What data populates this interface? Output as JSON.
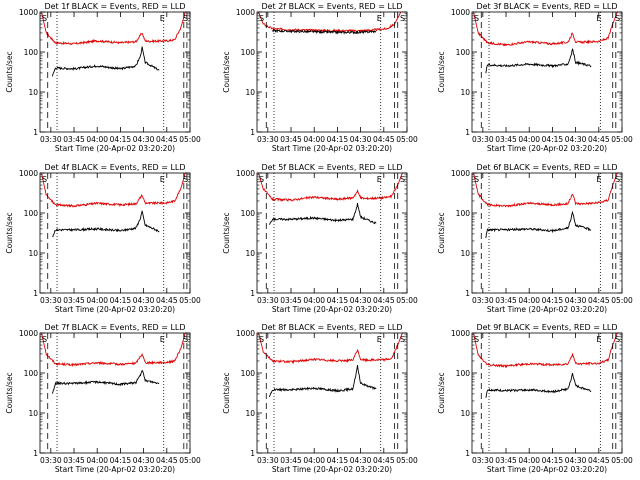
{
  "figure": {
    "xlabel": "Start Time (20-Apr-02 03:20:20)",
    "ylabel": "Counts/sec",
    "colors": {
      "events": "#000000",
      "lld": "#e00000",
      "axes": "#000000"
    }
  },
  "chart_data": [
    {
      "type": "line",
      "title": "Det 1f  BLACK = Events, RED = LLD",
      "xlabel": "Start Time (20-Apr-02 03:20:20)",
      "ylabel": "Counts/sec",
      "y_scale": "log",
      "ylim": [
        1,
        1000
      ],
      "xlim": [
        "03:23",
        "05:00"
      ],
      "x_ticks": [
        "03:30",
        "03:45",
        "04:00",
        "04:15",
        "04:30",
        "04:45",
        "05:00"
      ],
      "y_ticks": [
        "1",
        "10",
        "100",
        "1000"
      ],
      "corner_labels": {
        "left": "S",
        "mid": "E",
        "right": "S"
      },
      "series": [
        {
          "name": "LLD",
          "color": "red",
          "x": [
            "03:24",
            "03:27",
            "03:33",
            "03:45",
            "04:00",
            "04:15",
            "04:25",
            "04:29",
            "04:31",
            "04:33",
            "04:45",
            "04:50",
            "04:54",
            "04:57"
          ],
          "y": [
            1000,
            300,
            170,
            160,
            190,
            170,
            180,
            300,
            190,
            185,
            190,
            200,
            400,
            1000
          ]
        },
        {
          "name": "Events",
          "color": "black",
          "x": [
            "03:31",
            "03:33",
            "03:45",
            "04:00",
            "04:15",
            "04:25",
            "04:28",
            "04:29",
            "04:31",
            "04:40"
          ],
          "y": [
            25,
            40,
            38,
            45,
            38,
            45,
            80,
            130,
            55,
            35
          ]
        }
      ],
      "vlines": {
        "dashed": [
          "03:28",
          "04:56",
          "04:58"
        ],
        "dotted": [
          "03:34",
          "04:43"
        ]
      }
    },
    {
      "type": "line",
      "title": "Det 2f  BLACK = Events, RED = LLD",
      "xlabel": "Start Time (20-Apr-02 03:20:20)",
      "ylabel": "Counts/sec",
      "y_scale": "log",
      "ylim": [
        1,
        1000
      ],
      "xlim": [
        "03:23",
        "05:00"
      ],
      "x_ticks": [
        "03:30",
        "03:45",
        "04:00",
        "04:15",
        "04:30",
        "04:45",
        "05:00"
      ],
      "y_ticks": [
        "1",
        "10",
        "100",
        "1000"
      ],
      "corner_labels": {
        "left": "S",
        "mid": "E",
        "right": "S"
      },
      "series": [
        {
          "name": "LLD",
          "color": "red",
          "x": [
            "03:24",
            "03:27",
            "03:33",
            "03:45",
            "04:00",
            "04:15",
            "04:30",
            "04:40",
            "04:47",
            "04:52",
            "04:56"
          ],
          "y": [
            1000,
            500,
            380,
            360,
            350,
            340,
            340,
            360,
            380,
            500,
            1000
          ]
        },
        {
          "name": "Events",
          "color": "black",
          "x": [
            "03:33",
            "03:45",
            "04:00",
            "04:15",
            "04:30",
            "04:40"
          ],
          "y": [
            340,
            330,
            320,
            310,
            310,
            330
          ]
        }
      ],
      "vlines": {
        "dashed": [
          "03:29",
          "04:52",
          "04:54"
        ],
        "dotted": [
          "03:34",
          "04:43"
        ]
      }
    },
    {
      "type": "line",
      "title": "Det 3f  BLACK = Events, RED = LLD",
      "xlabel": "Start Time (20-Apr-02 03:20:20)",
      "ylabel": "Counts/sec",
      "y_scale": "log",
      "ylim": [
        1,
        1000
      ],
      "xlim": [
        "03:23",
        "05:00"
      ],
      "x_ticks": [
        "03:30",
        "03:45",
        "04:00",
        "04:15",
        "04:30",
        "04:45",
        "05:00"
      ],
      "y_ticks": [
        "1",
        "10",
        "100",
        "1000"
      ],
      "corner_labels": {
        "left": "S",
        "mid": "E",
        "right": "S"
      },
      "series": [
        {
          "name": "LLD",
          "color": "red",
          "x": [
            "03:24",
            "03:27",
            "03:33",
            "03:45",
            "04:00",
            "04:15",
            "04:25",
            "04:28",
            "04:30",
            "04:33",
            "04:45",
            "04:51",
            "04:54",
            "04:57"
          ],
          "y": [
            1000,
            300,
            170,
            150,
            180,
            160,
            175,
            300,
            180,
            175,
            185,
            220,
            500,
            1000
          ]
        },
        {
          "name": "Events",
          "color": "black",
          "x": [
            "03:32",
            "03:33",
            "03:45",
            "04:00",
            "04:15",
            "04:25",
            "04:27",
            "04:28",
            "04:30",
            "04:40"
          ],
          "y": [
            30,
            48,
            45,
            50,
            45,
            50,
            80,
            120,
            55,
            45
          ]
        }
      ],
      "vlines": {
        "dashed": [
          "03:29",
          "04:54",
          "04:56"
        ],
        "dotted": [
          "03:34",
          "04:46"
        ]
      }
    },
    {
      "type": "line",
      "title": "Det 4f  BLACK = Events, RED = LLD",
      "xlabel": "Start Time (20-Apr-02 03:20:20)",
      "ylabel": "Counts/sec",
      "y_scale": "log",
      "ylim": [
        1,
        1000
      ],
      "xlim": [
        "03:23",
        "05:00"
      ],
      "x_ticks": [
        "03:30",
        "03:45",
        "04:00",
        "04:15",
        "04:30",
        "04:45",
        "05:00"
      ],
      "y_ticks": [
        "1",
        "10",
        "100",
        "1000"
      ],
      "corner_labels": {
        "left": "S",
        "mid": "E",
        "right": "S"
      },
      "series": [
        {
          "name": "LLD",
          "color": "red",
          "x": [
            "03:24",
            "03:27",
            "03:33",
            "03:45",
            "04:00",
            "04:15",
            "04:25",
            "04:29",
            "04:31",
            "04:33",
            "04:45",
            "04:50",
            "04:54",
            "04:57"
          ],
          "y": [
            1000,
            280,
            160,
            150,
            175,
            160,
            170,
            280,
            180,
            175,
            180,
            200,
            400,
            1000
          ]
        },
        {
          "name": "Events",
          "color": "black",
          "x": [
            "03:31",
            "03:33",
            "03:45",
            "04:00",
            "04:15",
            "04:25",
            "04:28",
            "04:29",
            "04:31",
            "04:40"
          ],
          "y": [
            25,
            38,
            38,
            40,
            36,
            42,
            75,
            110,
            50,
            35
          ]
        }
      ],
      "vlines": {
        "dashed": [
          "03:28",
          "04:56",
          "04:58"
        ],
        "dotted": [
          "03:34",
          "04:43"
        ]
      }
    },
    {
      "type": "line",
      "title": "Det 5f  BLACK = Events, RED = LLD",
      "xlabel": "Start Time (20-Apr-02 03:20:20)",
      "ylabel": "Counts/sec",
      "y_scale": "log",
      "ylim": [
        1,
        1000
      ],
      "xlim": [
        "03:23",
        "05:00"
      ],
      "x_ticks": [
        "03:30",
        "03:45",
        "04:00",
        "04:15",
        "04:30",
        "04:45",
        "05:00"
      ],
      "y_ticks": [
        "1",
        "10",
        "100",
        "1000"
      ],
      "corner_labels": {
        "left": "S",
        "mid": "E",
        "right": "S"
      },
      "series": [
        {
          "name": "LLD",
          "color": "red",
          "x": [
            "03:24",
            "03:27",
            "03:33",
            "03:45",
            "04:00",
            "04:15",
            "04:25",
            "04:28",
            "04:30",
            "04:33",
            "04:45",
            "04:50",
            "04:54",
            "04:57"
          ],
          "y": [
            1000,
            400,
            220,
            210,
            250,
            220,
            240,
            350,
            240,
            230,
            240,
            260,
            500,
            1000
          ]
        },
        {
          "name": "Events",
          "color": "black",
          "x": [
            "03:31",
            "03:33",
            "03:45",
            "04:00",
            "04:15",
            "04:25",
            "04:27",
            "04:28",
            "04:30",
            "04:40"
          ],
          "y": [
            50,
            70,
            70,
            75,
            65,
            70,
            120,
            170,
            80,
            55
          ]
        }
      ],
      "vlines": {
        "dashed": [
          "03:29",
          "04:52",
          "04:54"
        ],
        "dotted": [
          "03:34",
          "04:43"
        ]
      }
    },
    {
      "type": "line",
      "title": "Det 6f  BLACK = Events, RED = LLD",
      "xlabel": "Start Time (20-Apr-02 03:20:20)",
      "ylabel": "Counts/sec",
      "y_scale": "log",
      "ylim": [
        1,
        1000
      ],
      "xlim": [
        "03:23",
        "05:00"
      ],
      "x_ticks": [
        "03:30",
        "03:45",
        "04:00",
        "04:15",
        "04:30",
        "04:45",
        "05:00"
      ],
      "y_ticks": [
        "1",
        "10",
        "100",
        "1000"
      ],
      "corner_labels": {
        "left": "S",
        "mid": "E",
        "right": "S"
      },
      "series": [
        {
          "name": "LLD",
          "color": "red",
          "x": [
            "03:24",
            "03:27",
            "03:33",
            "03:45",
            "04:00",
            "04:15",
            "04:25",
            "04:28",
            "04:30",
            "04:33",
            "04:45",
            "04:51",
            "04:54",
            "04:57"
          ],
          "y": [
            1000,
            300,
            160,
            150,
            175,
            160,
            170,
            300,
            175,
            170,
            180,
            210,
            500,
            1000
          ]
        },
        {
          "name": "Events",
          "color": "black",
          "x": [
            "03:32",
            "03:33",
            "03:45",
            "04:00",
            "04:15",
            "04:25",
            "04:27",
            "04:28",
            "04:30",
            "04:40"
          ],
          "y": [
            25,
            38,
            38,
            40,
            36,
            42,
            70,
            110,
            50,
            38
          ]
        }
      ],
      "vlines": {
        "dashed": [
          "03:29",
          "04:54",
          "04:56"
        ],
        "dotted": [
          "03:34",
          "04:46"
        ]
      }
    },
    {
      "type": "line",
      "title": "Det 7f  BLACK = Events, RED = LLD",
      "xlabel": "Start Time (20-Apr-02 03:20:20)",
      "ylabel": "Counts/sec",
      "y_scale": "log",
      "ylim": [
        1,
        1000
      ],
      "xlim": [
        "03:23",
        "05:00"
      ],
      "x_ticks": [
        "03:30",
        "03:45",
        "04:00",
        "04:15",
        "04:30",
        "04:45",
        "05:00"
      ],
      "y_ticks": [
        "1",
        "10",
        "100",
        "1000"
      ],
      "corner_labels": {
        "left": "S",
        "mid": "E",
        "right": "S"
      },
      "series": [
        {
          "name": "LLD",
          "color": "red",
          "x": [
            "03:24",
            "03:27",
            "03:33",
            "03:45",
            "04:00",
            "04:15",
            "04:25",
            "04:29",
            "04:31",
            "04:33",
            "04:45",
            "04:50",
            "04:54",
            "04:57"
          ],
          "y": [
            1000,
            300,
            170,
            160,
            180,
            165,
            175,
            300,
            185,
            180,
            185,
            200,
            400,
            1000
          ]
        },
        {
          "name": "Events",
          "color": "black",
          "x": [
            "03:31",
            "03:33",
            "03:45",
            "04:00",
            "04:15",
            "04:25",
            "04:28",
            "04:29",
            "04:31",
            "04:40"
          ],
          "y": [
            30,
            55,
            55,
            60,
            52,
            58,
            90,
            120,
            65,
            55
          ]
        }
      ],
      "vlines": {
        "dashed": [
          "03:28",
          "04:56",
          "04:58"
        ],
        "dotted": [
          "03:34",
          "04:43"
        ]
      }
    },
    {
      "type": "line",
      "title": "Det 8f  BLACK = Events, RED = LLD",
      "xlabel": "Start Time (20-Apr-02 03:20:20)",
      "ylabel": "Counts/sec",
      "y_scale": "log",
      "ylim": [
        1,
        1000
      ],
      "xlim": [
        "03:23",
        "05:00"
      ],
      "x_ticks": [
        "03:30",
        "03:45",
        "04:00",
        "04:15",
        "04:30",
        "04:45",
        "05:00"
      ],
      "y_ticks": [
        "1",
        "10",
        "100",
        "1000"
      ],
      "corner_labels": {
        "left": "S",
        "mid": "E",
        "right": "S"
      },
      "series": [
        {
          "name": "LLD",
          "color": "red",
          "x": [
            "03:24",
            "03:27",
            "03:33",
            "03:45",
            "04:00",
            "04:15",
            "04:25",
            "04:28",
            "04:30",
            "04:33",
            "04:45",
            "04:50",
            "04:54",
            "04:57"
          ],
          "y": [
            1000,
            350,
            200,
            190,
            220,
            200,
            210,
            380,
            220,
            210,
            215,
            230,
            500,
            1000
          ]
        },
        {
          "name": "Events",
          "color": "black",
          "x": [
            "03:31",
            "03:33",
            "03:45",
            "04:00",
            "04:15",
            "04:25",
            "04:27",
            "04:28",
            "04:30",
            "04:40"
          ],
          "y": [
            25,
            38,
            38,
            42,
            36,
            40,
            90,
            150,
            55,
            40
          ]
        }
      ],
      "vlines": {
        "dashed": [
          "03:29",
          "04:52",
          "04:54"
        ],
        "dotted": [
          "03:34",
          "04:43"
        ]
      }
    },
    {
      "type": "line",
      "title": "Det 9f  BLACK = Events, RED = LLD",
      "xlabel": "Start Time (20-Apr-02 03:20:20)",
      "ylabel": "Counts/sec",
      "y_scale": "log",
      "ylim": [
        1,
        1000
      ],
      "xlim": [
        "03:23",
        "05:00"
      ],
      "x_ticks": [
        "03:30",
        "03:45",
        "04:00",
        "04:15",
        "04:30",
        "04:45",
        "05:00"
      ],
      "y_ticks": [
        "1",
        "10",
        "100",
        "1000"
      ],
      "corner_labels": {
        "left": "S",
        "mid": "E",
        "right": "S"
      },
      "series": [
        {
          "name": "LLD",
          "color": "red",
          "x": [
            "03:24",
            "03:27",
            "03:33",
            "03:45",
            "04:00",
            "04:15",
            "04:25",
            "04:28",
            "04:30",
            "04:33",
            "04:45",
            "04:51",
            "04:54",
            "04:57"
          ],
          "y": [
            1000,
            280,
            160,
            150,
            170,
            160,
            170,
            290,
            175,
            170,
            175,
            210,
            500,
            1000
          ]
        },
        {
          "name": "Events",
          "color": "black",
          "x": [
            "03:32",
            "03:33",
            "03:45",
            "04:00",
            "04:15",
            "04:25",
            "04:27",
            "04:28",
            "04:30",
            "04:40"
          ],
          "y": [
            25,
            38,
            36,
            38,
            34,
            40,
            65,
            100,
            48,
            36
          ]
        }
      ],
      "vlines": {
        "dashed": [
          "03:29",
          "04:54",
          "04:56"
        ],
        "dotted": [
          "03:34",
          "04:46"
        ]
      }
    }
  ]
}
